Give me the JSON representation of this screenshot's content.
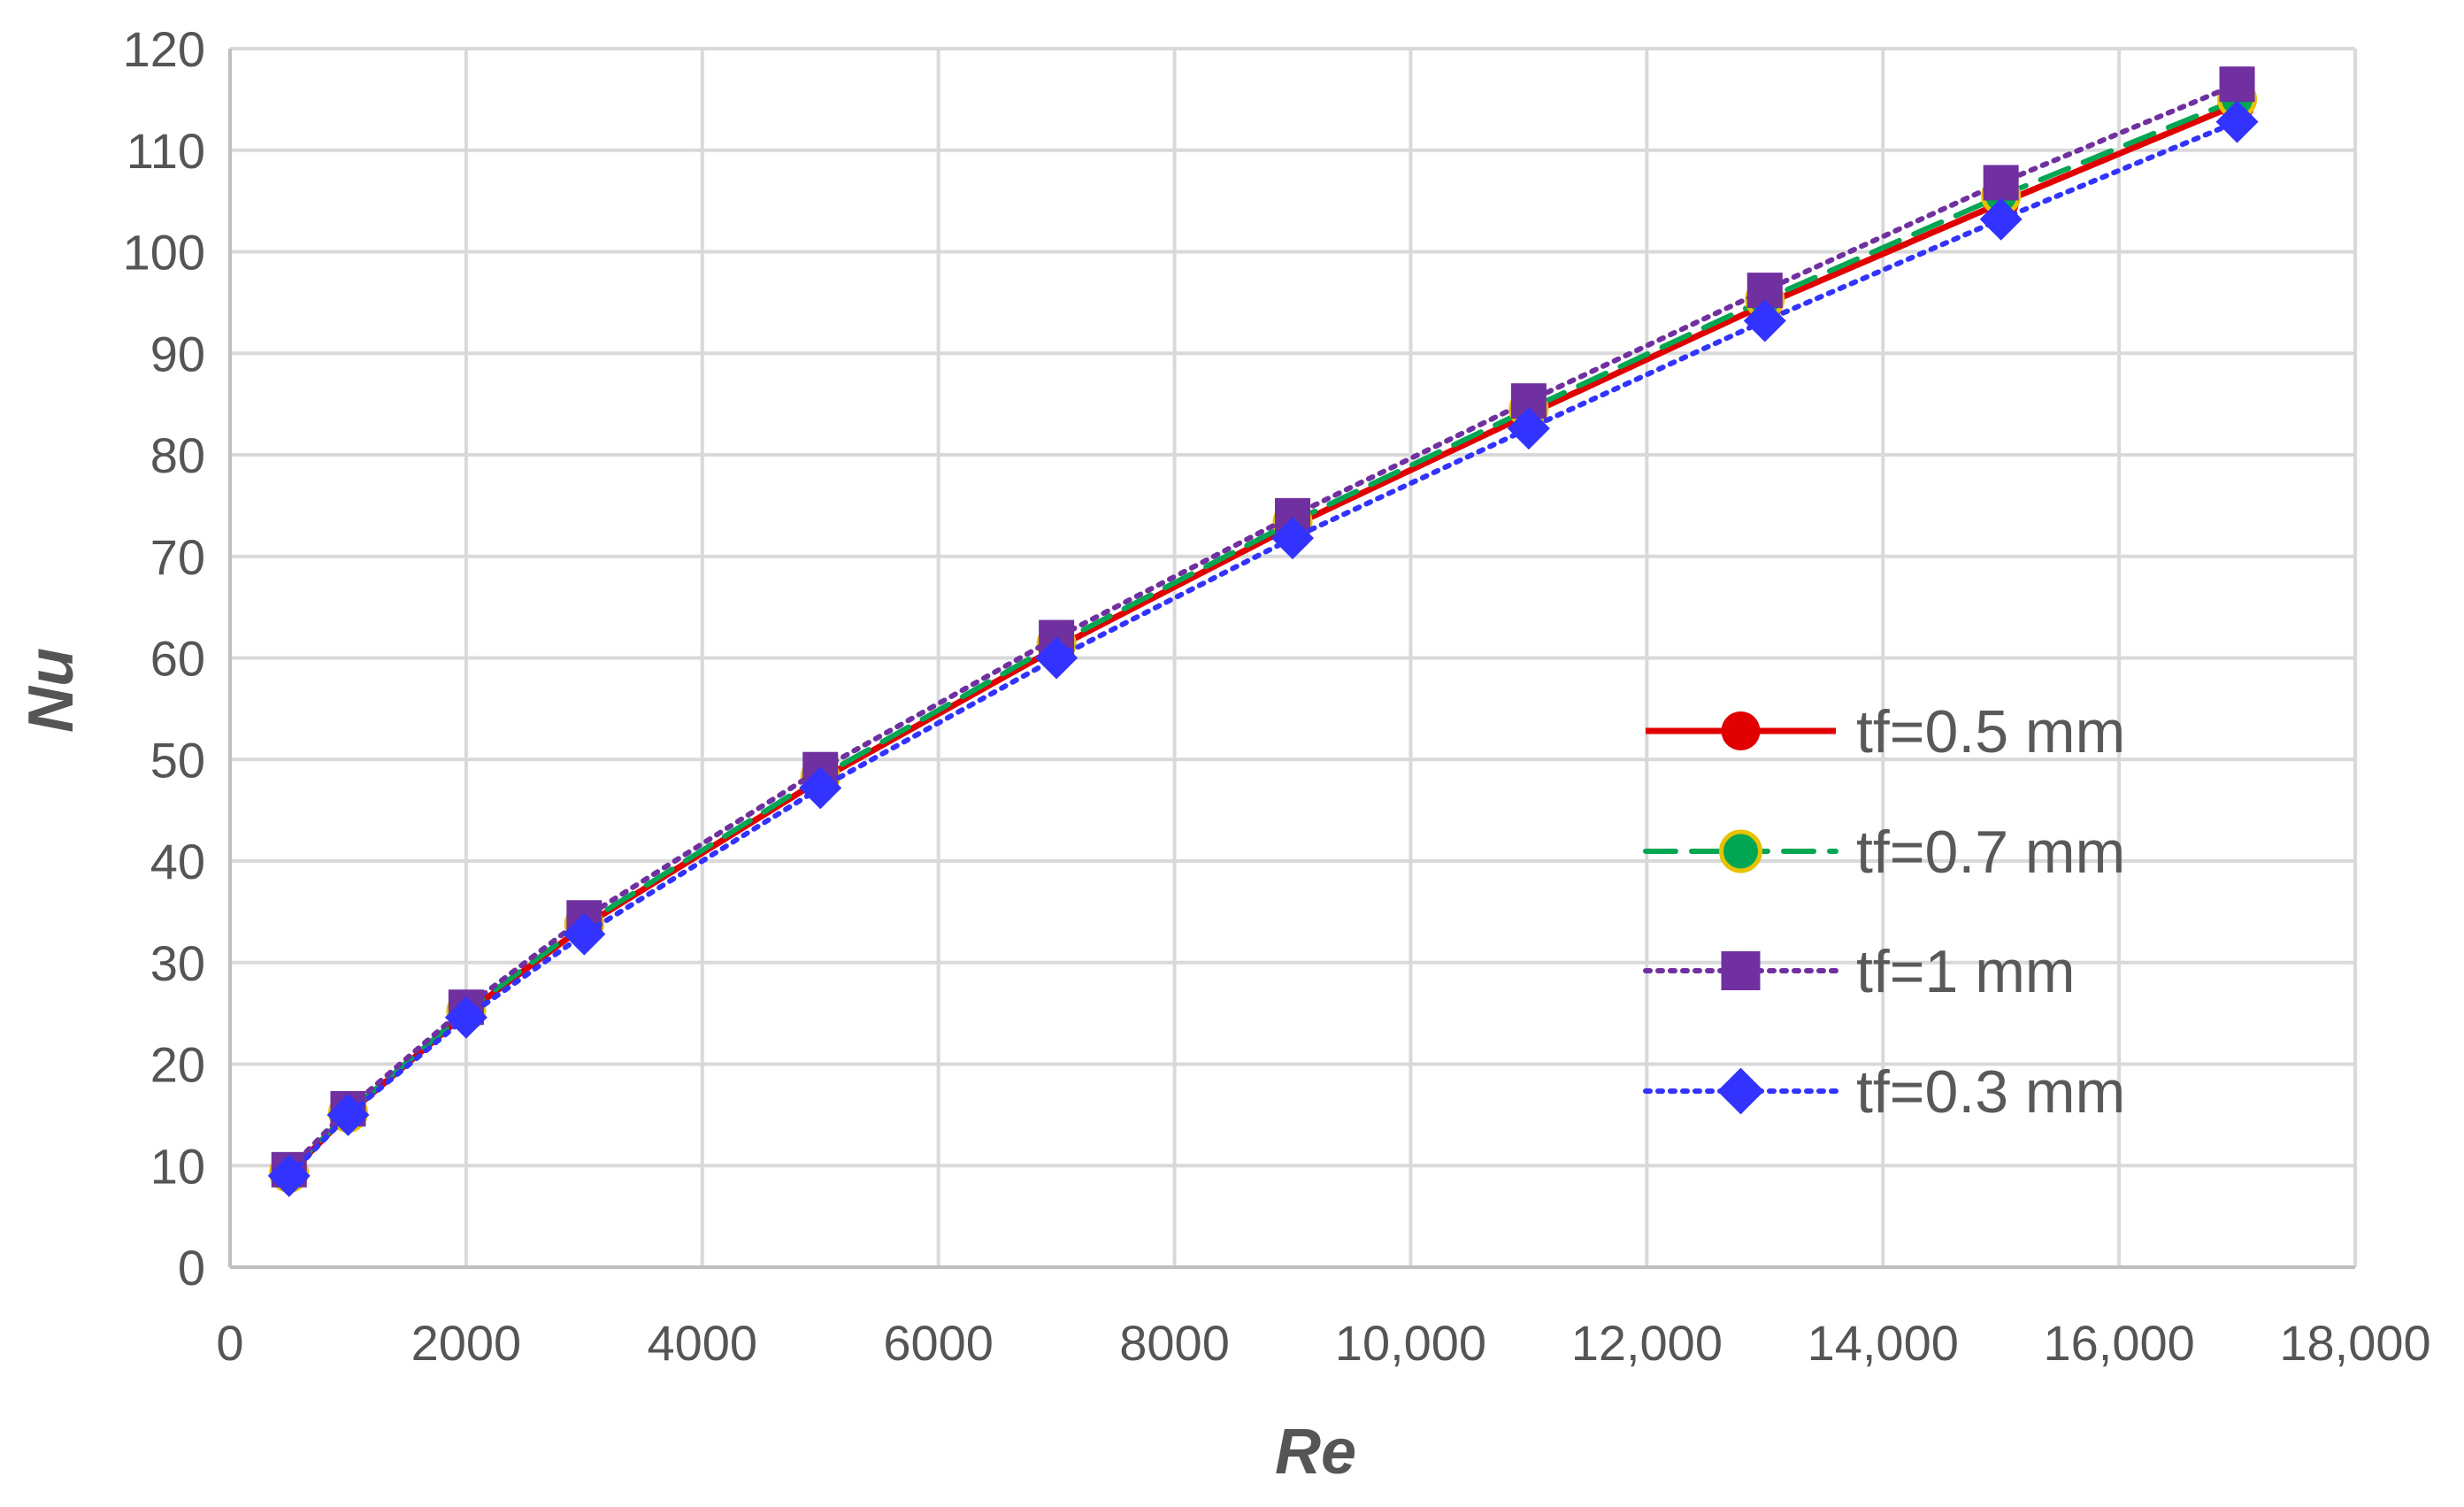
{
  "chart_data": {
    "type": "line",
    "title": "",
    "xlabel": "Re",
    "ylabel": "Nu",
    "xlim": [
      0,
      18000
    ],
    "ylim": [
      0,
      120
    ],
    "grid": true,
    "legend_position": "right",
    "x_ticks": [
      {
        "value": 0,
        "label": "0"
      },
      {
        "value": 2000,
        "label": "2000"
      },
      {
        "value": 4000,
        "label": "4000"
      },
      {
        "value": 6000,
        "label": "6000"
      },
      {
        "value": 8000,
        "label": "8000"
      },
      {
        "value": 10000,
        "label": "10,000"
      },
      {
        "value": 12000,
        "label": "12,000"
      },
      {
        "value": 14000,
        "label": "14,000"
      },
      {
        "value": 16000,
        "label": "16,000"
      },
      {
        "value": 18000,
        "label": "18,000"
      }
    ],
    "y_ticks": [
      {
        "value": 0,
        "label": "0"
      },
      {
        "value": 10,
        "label": "10"
      },
      {
        "value": 20,
        "label": "20"
      },
      {
        "value": 30,
        "label": "30"
      },
      {
        "value": 40,
        "label": "40"
      },
      {
        "value": 50,
        "label": "50"
      },
      {
        "value": 60,
        "label": "60"
      },
      {
        "value": 70,
        "label": "70"
      },
      {
        "value": 80,
        "label": "80"
      },
      {
        "value": 90,
        "label": "90"
      },
      {
        "value": 100,
        "label": "100"
      },
      {
        "value": 110,
        "label": "110"
      },
      {
        "value": 120,
        "label": "120"
      }
    ],
    "x": [
      500,
      1000,
      2000,
      3000,
      5000,
      7000,
      9000,
      11000,
      13000,
      15000,
      17000
    ],
    "series": [
      {
        "name": "tf=0.5 mm",
        "color": "#e00000",
        "line_style": "solid",
        "marker": "circle",
        "values": [
          9.2,
          15.1,
          25.0,
          33.6,
          48.0,
          61.0,
          73.0,
          84.0,
          94.8,
          104.8,
          114.5
        ]
      },
      {
        "name": "tf=0.7 mm",
        "color": "#00a651",
        "marker_edge": "#e6c200",
        "line_style": "dashed",
        "marker": "circle",
        "values": [
          9.3,
          15.2,
          25.2,
          33.8,
          48.3,
          61.4,
          73.4,
          84.5,
          95.3,
          105.5,
          115.0
        ]
      },
      {
        "name": "tf=1 mm",
        "color": "#7030a0",
        "line_style": "dotted",
        "marker": "square",
        "values": [
          9.6,
          15.6,
          25.6,
          34.4,
          49.0,
          62.0,
          74.0,
          85.3,
          96.2,
          106.8,
          116.5
        ]
      },
      {
        "name": "tf=0.3 mm",
        "color": "#3333ff",
        "line_style": "dotted",
        "marker": "diamond",
        "values": [
          9.0,
          15.0,
          24.6,
          32.8,
          47.2,
          60.0,
          71.8,
          82.6,
          93.2,
          103.2,
          112.8
        ]
      }
    ]
  }
}
